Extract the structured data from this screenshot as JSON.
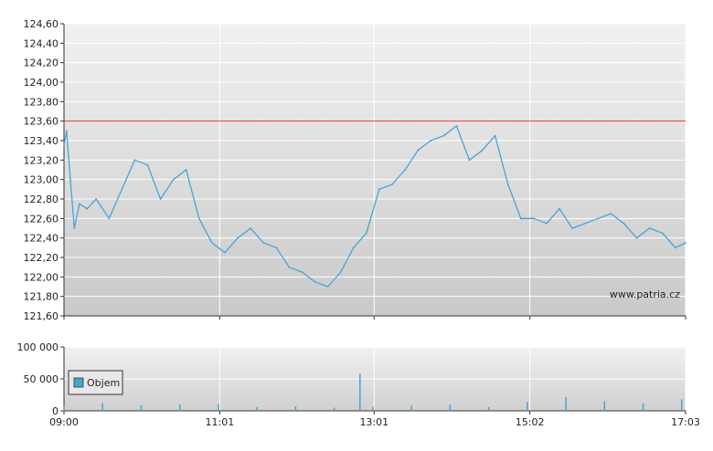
{
  "chart_data": [
    {
      "type": "line",
      "xlim": [
        "09:00",
        "17:03"
      ],
      "ylim": [
        121.6,
        124.6
      ],
      "y_ticks": [
        "124,60",
        "124,40",
        "124,20",
        "124,00",
        "123,80",
        "123,60",
        "123,40",
        "123,20",
        "123,00",
        "122,80",
        "122,60",
        "122,40",
        "122,20",
        "122,00",
        "121,80",
        "121,60"
      ],
      "x_ticks": [
        "09:00",
        "11:01",
        "13:01",
        "15:02",
        "17:03"
      ],
      "grid": true,
      "reference_line": {
        "value": 123.6,
        "color": "#e53935"
      },
      "watermark": "www.patria.cz",
      "series": [
        {
          "color": "#4aa3d4",
          "x": [
            "09:00",
            "09:02",
            "09:05",
            "09:08",
            "09:12",
            "09:18",
            "09:25",
            "09:35",
            "09:45",
            "09:55",
            "10:05",
            "10:15",
            "10:25",
            "10:35",
            "10:45",
            "10:55",
            "11:05",
            "11:15",
            "11:25",
            "11:35",
            "11:45",
            "11:55",
            "12:05",
            "12:15",
            "12:25",
            "12:35",
            "12:45",
            "12:55",
            "13:05",
            "13:15",
            "13:25",
            "13:35",
            "13:45",
            "13:55",
            "14:05",
            "14:15",
            "14:25",
            "14:35",
            "14:45",
            "14:55",
            "15:05",
            "15:15",
            "15:25",
            "15:35",
            "15:45",
            "15:55",
            "16:05",
            "16:15",
            "16:25",
            "16:35",
            "16:45",
            "16:55",
            "17:03"
          ],
          "values": [
            123.35,
            123.5,
            123.0,
            122.5,
            122.75,
            122.7,
            122.8,
            122.6,
            122.9,
            123.2,
            123.15,
            122.8,
            123.0,
            123.1,
            122.6,
            122.35,
            122.25,
            122.4,
            122.5,
            122.35,
            122.3,
            122.1,
            122.05,
            121.95,
            121.9,
            122.05,
            122.3,
            122.45,
            122.9,
            122.95,
            123.1,
            123.3,
            123.4,
            123.45,
            123.55,
            123.2,
            123.3,
            123.45,
            122.95,
            122.6,
            122.6,
            122.55,
            122.7,
            122.5,
            122.55,
            122.6,
            122.65,
            122.55,
            122.4,
            122.5,
            122.45,
            122.3,
            122.35
          ]
        }
      ]
    },
    {
      "type": "bar",
      "xlim": [
        "09:00",
        "17:03"
      ],
      "ylim": [
        0,
        100000
      ],
      "y_ticks": [
        "100 000",
        "50 000",
        "0"
      ],
      "x_ticks": [
        "09:00",
        "11:01",
        "13:01",
        "15:02",
        "17:03"
      ],
      "grid": true,
      "legend": {
        "position": "top-left",
        "label": "Objem",
        "color": "#4aa3d4"
      },
      "series": [
        {
          "name": "Objem",
          "color": "#4aa3d4",
          "x": [
            "09:00",
            "09:30",
            "10:00",
            "10:30",
            "11:00",
            "11:30",
            "12:00",
            "12:30",
            "12:50",
            "13:00",
            "13:30",
            "14:00",
            "14:30",
            "15:00",
            "15:30",
            "16:00",
            "16:30",
            "17:00"
          ],
          "values": [
            8000,
            12000,
            9000,
            10000,
            11000,
            6000,
            7000,
            5000,
            58000,
            6000,
            8000,
            10000,
            6000,
            14000,
            22000,
            15000,
            12000,
            18000
          ]
        }
      ]
    }
  ]
}
